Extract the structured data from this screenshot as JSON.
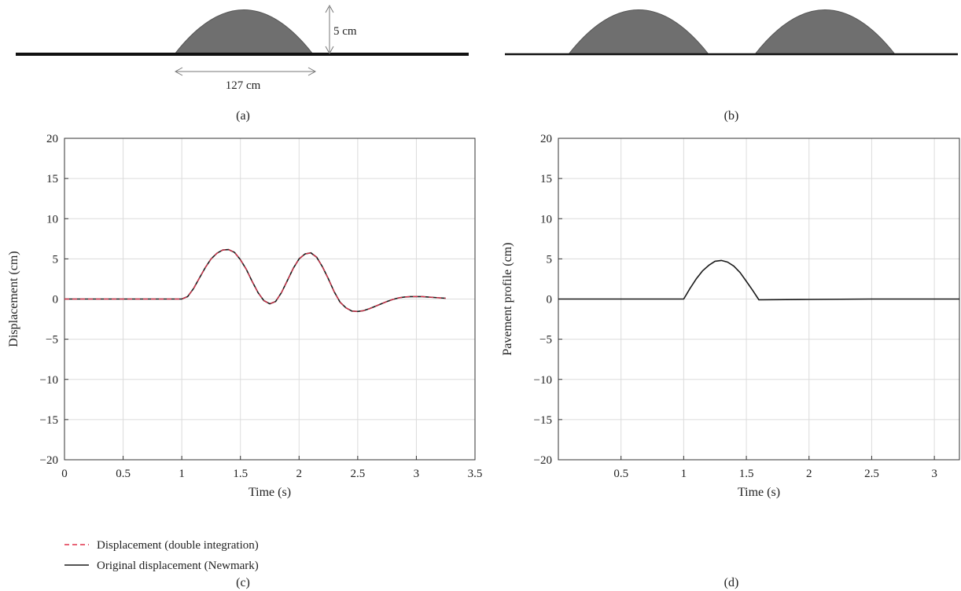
{
  "panels": {
    "a": {
      "label": "(a)",
      "width_label": "127 cm",
      "height_label": "5 cm"
    },
    "b": {
      "label": "(b)"
    },
    "c": {
      "label": "(c)"
    },
    "d": {
      "label": "(d)"
    }
  },
  "colors": {
    "bump_fill": "#6f6f6f",
    "ground": "#111111",
    "grid": "#dcdcdc",
    "original_line": "#1a1a1a",
    "double_integration_line": "#e0304a"
  },
  "legend": [
    {
      "label": "Displacement (double integration)",
      "style": "dashed",
      "color": "#e0304a"
    },
    {
      "label": "Original displacement (Newmark)",
      "style": "solid",
      "color": "#1a1a1a"
    }
  ],
  "chart_data": [
    {
      "id": "c",
      "type": "line",
      "xlabel": "Time (s)",
      "ylabel": "Displacement (cm)",
      "xlim": [
        0,
        3.5
      ],
      "ylim": [
        -20,
        20
      ],
      "xticks": [
        0,
        0.5,
        1,
        1.5,
        2,
        2.5,
        3,
        3.5
      ],
      "xtick_labels": [
        "0",
        "0.5",
        "1",
        "1.5",
        "2",
        "2.5",
        "3",
        "3.5"
      ],
      "yticks": [
        -20,
        -15,
        -10,
        -5,
        0,
        5,
        10,
        15,
        20
      ],
      "ytick_labels": [
        "−20",
        "−15",
        "−10",
        "−5",
        "0",
        "5",
        "10",
        "15",
        "20"
      ],
      "grid": true,
      "series": [
        {
          "name": "Displacement (double integration)",
          "style": "dashed",
          "x": [
            0,
            0.25,
            0.5,
            0.75,
            1.0,
            1.05,
            1.1,
            1.15,
            1.2,
            1.25,
            1.3,
            1.35,
            1.4,
            1.45,
            1.5,
            1.55,
            1.6,
            1.65,
            1.7,
            1.75,
            1.8,
            1.85,
            1.9,
            1.95,
            2.0,
            2.05,
            2.1,
            2.15,
            2.2,
            2.25,
            2.3,
            2.35,
            2.4,
            2.45,
            2.5,
            2.55,
            2.6,
            2.65,
            2.7,
            2.75,
            2.8,
            2.85,
            2.9,
            2.95,
            3.0,
            3.05,
            3.1,
            3.15,
            3.2,
            3.25
          ],
          "y": [
            0,
            0,
            0,
            0,
            0,
            0.3,
            1.3,
            2.6,
            3.9,
            5.0,
            5.7,
            6.1,
            6.15,
            5.8,
            4.9,
            3.7,
            2.2,
            0.8,
            -0.2,
            -0.6,
            -0.3,
            0.8,
            2.3,
            3.8,
            5.0,
            5.6,
            5.75,
            5.2,
            4.0,
            2.5,
            0.9,
            -0.4,
            -1.1,
            -1.5,
            -1.55,
            -1.45,
            -1.2,
            -0.9,
            -0.6,
            -0.3,
            -0.05,
            0.15,
            0.25,
            0.3,
            0.3,
            0.3,
            0.25,
            0.2,
            0.15,
            0.1
          ]
        },
        {
          "name": "Original displacement (Newmark)",
          "style": "solid",
          "x": [
            0,
            0.25,
            0.5,
            0.75,
            1.0,
            1.05,
            1.1,
            1.15,
            1.2,
            1.25,
            1.3,
            1.35,
            1.4,
            1.45,
            1.5,
            1.55,
            1.6,
            1.65,
            1.7,
            1.75,
            1.8,
            1.85,
            1.9,
            1.95,
            2.0,
            2.05,
            2.1,
            2.15,
            2.2,
            2.25,
            2.3,
            2.35,
            2.4,
            2.45,
            2.5,
            2.55,
            2.6,
            2.65,
            2.7,
            2.75,
            2.8,
            2.85,
            2.9,
            2.95,
            3.0,
            3.05,
            3.1,
            3.15,
            3.2,
            3.25
          ],
          "y": [
            0,
            0,
            0,
            0,
            0,
            0.3,
            1.3,
            2.6,
            3.9,
            5.0,
            5.7,
            6.1,
            6.15,
            5.8,
            4.9,
            3.7,
            2.2,
            0.8,
            -0.2,
            -0.6,
            -0.3,
            0.8,
            2.3,
            3.8,
            5.0,
            5.6,
            5.75,
            5.2,
            4.0,
            2.5,
            0.9,
            -0.4,
            -1.1,
            -1.5,
            -1.55,
            -1.45,
            -1.2,
            -0.9,
            -0.6,
            -0.3,
            -0.05,
            0.15,
            0.25,
            0.3,
            0.3,
            0.3,
            0.25,
            0.2,
            0.15,
            0.1
          ]
        }
      ]
    },
    {
      "id": "d",
      "type": "line",
      "xlabel": "Time (s)",
      "ylabel": "Pavement profile (cm)",
      "xlim": [
        0,
        3.2
      ],
      "ylim": [
        -20,
        20
      ],
      "xticks": [
        0.5,
        1,
        1.5,
        2,
        2.5,
        3
      ],
      "xtick_labels": [
        "0.5",
        "1",
        "1.5",
        "2",
        "2.5",
        "3"
      ],
      "yticks": [
        -20,
        -15,
        -10,
        -5,
        0,
        5,
        10,
        15,
        20
      ],
      "ytick_labels": [
        "−20",
        "−15",
        "−10",
        "−5",
        "0",
        "5",
        "10",
        "15",
        "20"
      ],
      "grid": true,
      "series": [
        {
          "style": "solid",
          "x": [
            0,
            0.5,
            1.0,
            1.05,
            1.1,
            1.15,
            1.2,
            1.25,
            1.3,
            1.35,
            1.4,
            1.45,
            1.5,
            1.55,
            1.6,
            2.0,
            2.5,
            3.0,
            3.2
          ],
          "y": [
            0,
            0,
            0,
            1.3,
            2.5,
            3.5,
            4.2,
            4.7,
            4.8,
            4.6,
            4.1,
            3.3,
            2.2,
            1.1,
            -0.1,
            -0.05,
            0,
            0,
            0
          ]
        }
      ]
    }
  ]
}
